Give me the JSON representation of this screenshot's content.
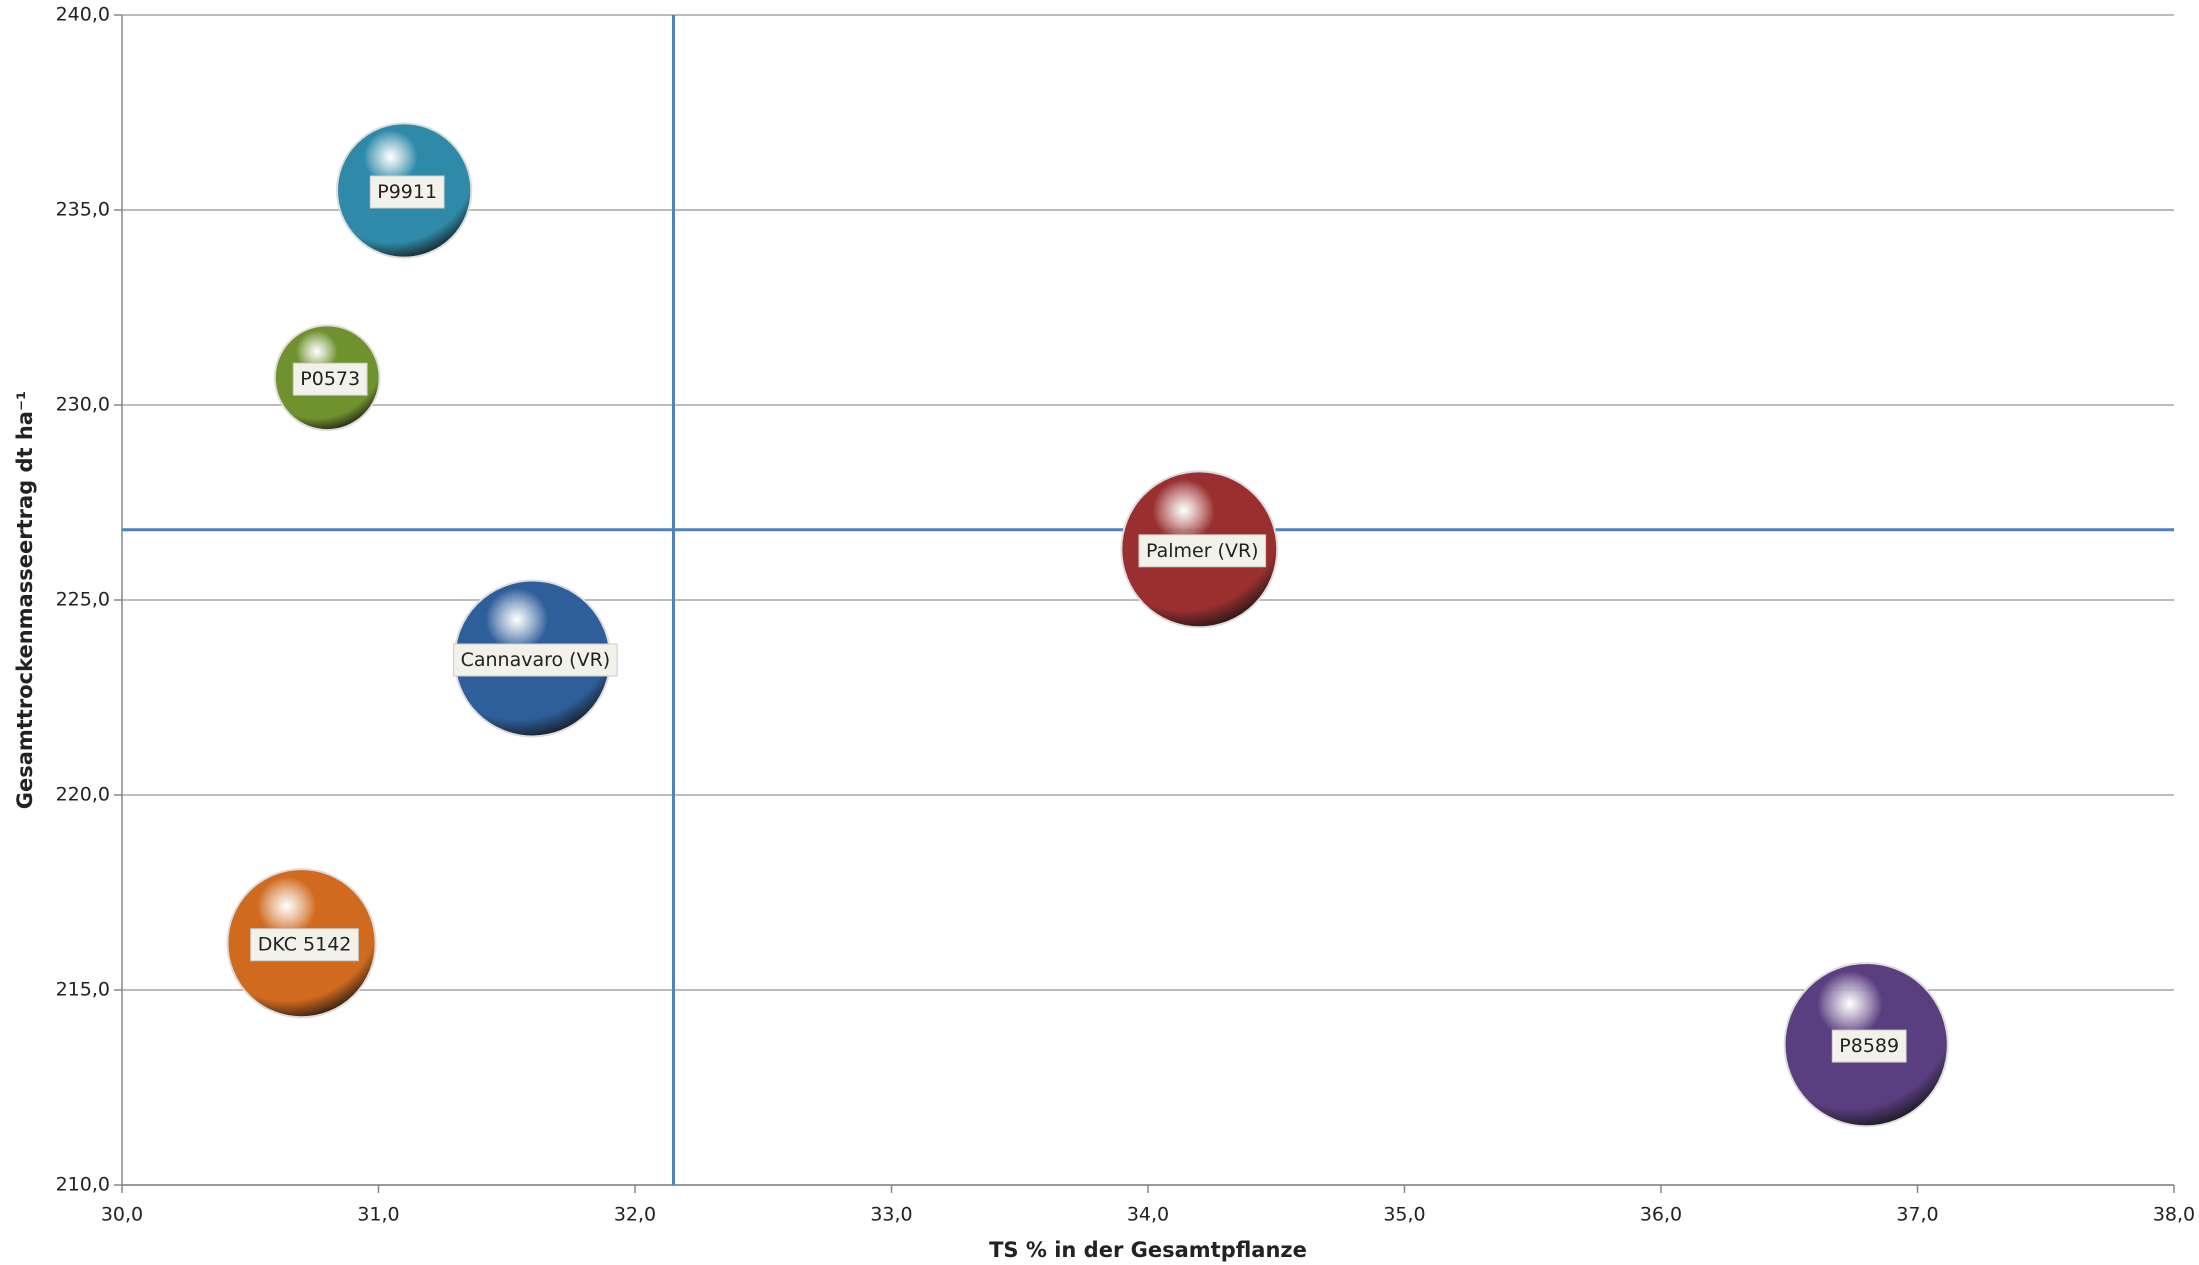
{
  "chart_data": {
    "type": "bubble",
    "x_label": "TS % in der Gesamtpflanze",
    "y_label": "Gesamttrockenmasseertrag dt ha⁻¹",
    "categories": [
      "P9911",
      "P0573",
      "Cannavaro (VR)",
      "Palmer (VR)",
      "DKC 5142",
      "P8589"
    ],
    "x": [
      31.1,
      30.8,
      31.6,
      34.2,
      30.7,
      36.8
    ],
    "values": [
      235.5,
      230.7,
      223.5,
      226.3,
      216.2,
      213.6
    ],
    "sizes": [
      23,
      14,
      31,
      31,
      28,
      34
    ],
    "colors": [
      "#2e8aa8",
      "#6f912e",
      "#2f5f9a",
      "#9a2f2f",
      "#d06a1e",
      "#5a3f80"
    ],
    "reference_lines": {
      "x": 32.15,
      "y": 226.8,
      "color": "#4f81bd"
    },
    "xlim": [
      30,
      38
    ],
    "xticks": [
      {
        "value": 30,
        "label": "30,0"
      },
      {
        "value": 31,
        "label": "31,0"
      },
      {
        "value": 32,
        "label": "32,0"
      },
      {
        "value": 33,
        "label": "33,0"
      },
      {
        "value": 34,
        "label": "34,0"
      },
      {
        "value": 35,
        "label": "35,0"
      },
      {
        "value": 36,
        "label": "36,0"
      },
      {
        "value": 37,
        "label": "37,0"
      },
      {
        "value": 38,
        "label": "38,0"
      }
    ],
    "ylim": [
      210,
      240
    ],
    "yticks": [
      {
        "value": 210,
        "label": "210,0"
      },
      {
        "value": 215,
        "label": "215,0"
      },
      {
        "value": 220,
        "label": "220,0"
      },
      {
        "value": 225,
        "label": "225,0"
      },
      {
        "value": 230,
        "label": "230,0"
      },
      {
        "value": 235,
        "label": "235,0"
      },
      {
        "value": 240,
        "label": "240,0"
      }
    ],
    "grid": true
  }
}
